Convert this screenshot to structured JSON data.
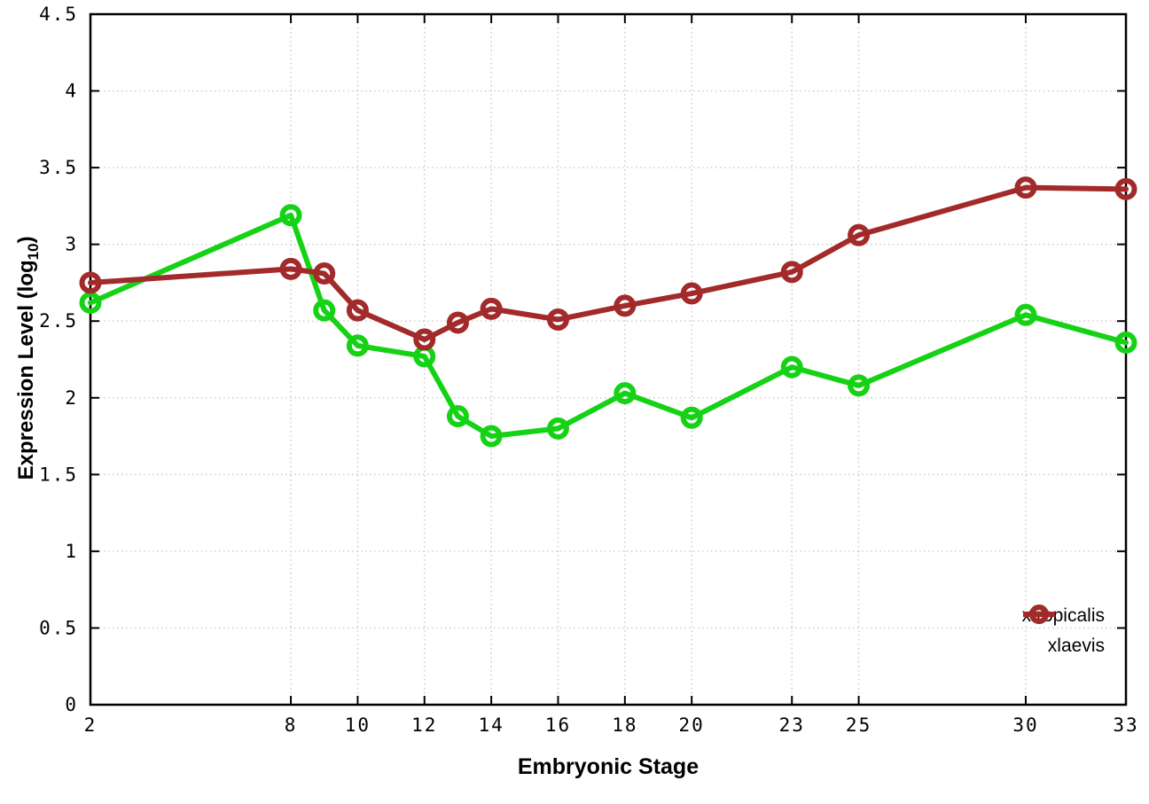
{
  "labels": {
    "xlabel": "Embryonic Stage",
    "ylabel_prefix": "Expression Level (log",
    "ylabel_sub": "10",
    "ylabel_suffix": ")"
  },
  "colors": {
    "background": "#ffffff",
    "border": "#000000",
    "grid": "#c9c9c9",
    "tick_text": "#000000",
    "xtropicalis": "#16d216",
    "xlaevis": "#a22a2a"
  },
  "chart_data": {
    "type": "line",
    "title": "",
    "xlabel": "Embryonic Stage",
    "ylabel": "Expression Level (log10)",
    "xlim": [
      2,
      33
    ],
    "ylim": [
      0,
      4.5
    ],
    "grid": true,
    "legend_position": "bottom-right",
    "x_ticks": [
      2,
      8,
      10,
      12,
      14,
      16,
      18,
      20,
      23,
      25,
      30,
      33
    ],
    "y_ticks": [
      0,
      0.5,
      1,
      1.5,
      2,
      2.5,
      3,
      3.5,
      4,
      4.5
    ],
    "x": [
      2,
      8,
      9,
      10,
      12,
      13,
      14,
      16,
      18,
      20,
      23,
      25,
      30,
      33
    ],
    "series": [
      {
        "name": "xtropicalis",
        "color": "#16d216",
        "marker": "open-circle",
        "values": [
          2.62,
          3.19,
          2.57,
          2.34,
          2.27,
          1.88,
          1.75,
          1.8,
          2.03,
          1.87,
          2.2,
          2.08,
          2.54,
          2.36
        ]
      },
      {
        "name": "xlaevis",
        "color": "#a22a2a",
        "marker": "open-circle",
        "values": [
          2.75,
          2.84,
          2.81,
          2.57,
          2.38,
          2.49,
          2.58,
          2.51,
          2.6,
          2.68,
          2.82,
          3.06,
          3.37,
          3.36
        ]
      }
    ]
  }
}
